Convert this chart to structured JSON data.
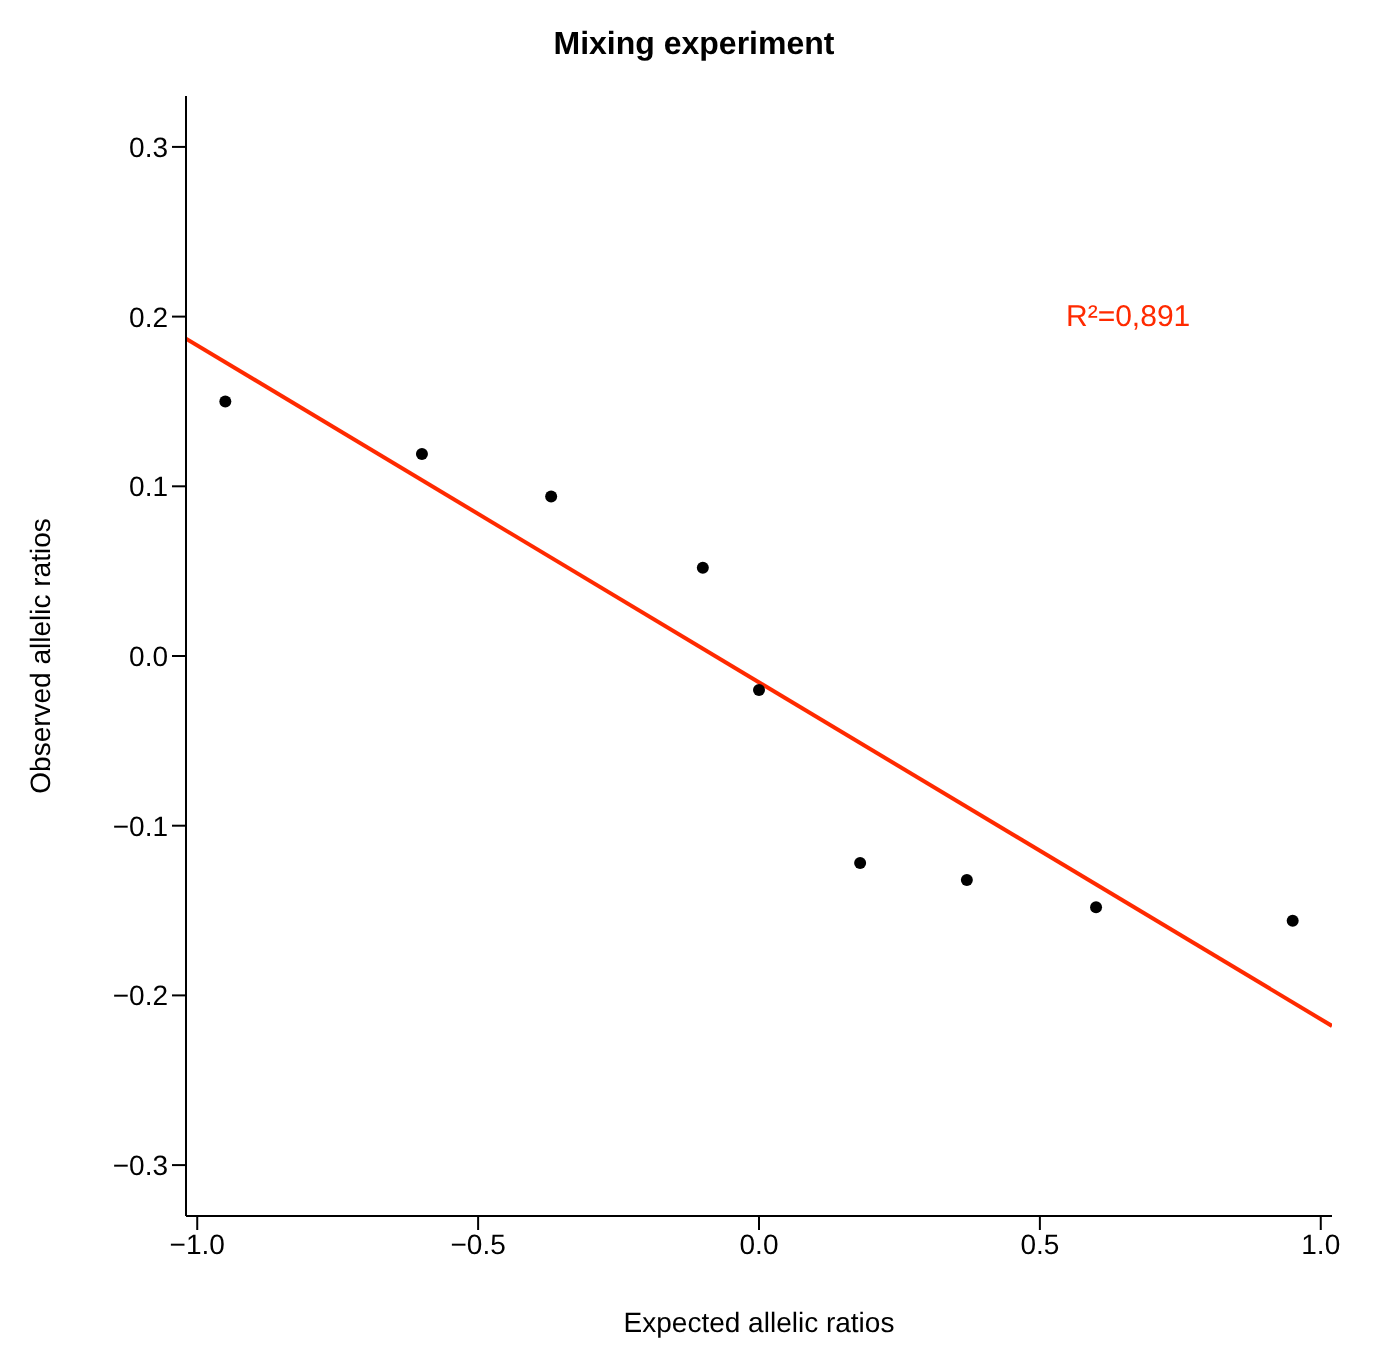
{
  "chart_data": {
    "type": "scatter",
    "title": "Mixing experiment",
    "xlabel": "Expected allelic ratios",
    "ylabel": "Observed allelic ratios",
    "xlim": [
      -1.02,
      1.02
    ],
    "ylim": [
      -0.33,
      0.33
    ],
    "xticks": [
      {
        "value": -1,
        "label": "−1.0"
      },
      {
        "value": -0.5,
        "label": "−0.5"
      },
      {
        "value": 0,
        "label": "0.0"
      },
      {
        "value": 0.5,
        "label": "0.5"
      },
      {
        "value": 1,
        "label": "1.0"
      }
    ],
    "yticks": [
      {
        "value": -0.3,
        "label": "−0.3"
      },
      {
        "value": -0.2,
        "label": "−0.2"
      },
      {
        "value": -0.1,
        "label": "−0.1"
      },
      {
        "value": 0,
        "label": "0.0"
      },
      {
        "value": 0.1,
        "label": "0.1"
      },
      {
        "value": 0.2,
        "label": "0.2"
      },
      {
        "value": 0.3,
        "label": "0.3"
      }
    ],
    "grid": false,
    "marker": "circle",
    "annotations": [
      "R²=0,891"
    ],
    "series": [
      {
        "color": "#000000",
        "x": [
          -0.95,
          -0.6,
          -0.37,
          -0.1,
          0,
          0.18,
          0.37,
          0.6,
          0.95
        ],
        "values": [
          0.15,
          0.119,
          0.094,
          0.052,
          -0.02,
          -0.122,
          -0.132,
          -0.148,
          -0.156
        ]
      },
      {
        "type": "line",
        "color": "#ff2a00",
        "line_style": "solid",
        "marker": "none",
        "x": [
          -1.02,
          1.02
        ],
        "values": [
          0.187,
          -0.218
        ]
      }
    ]
  }
}
